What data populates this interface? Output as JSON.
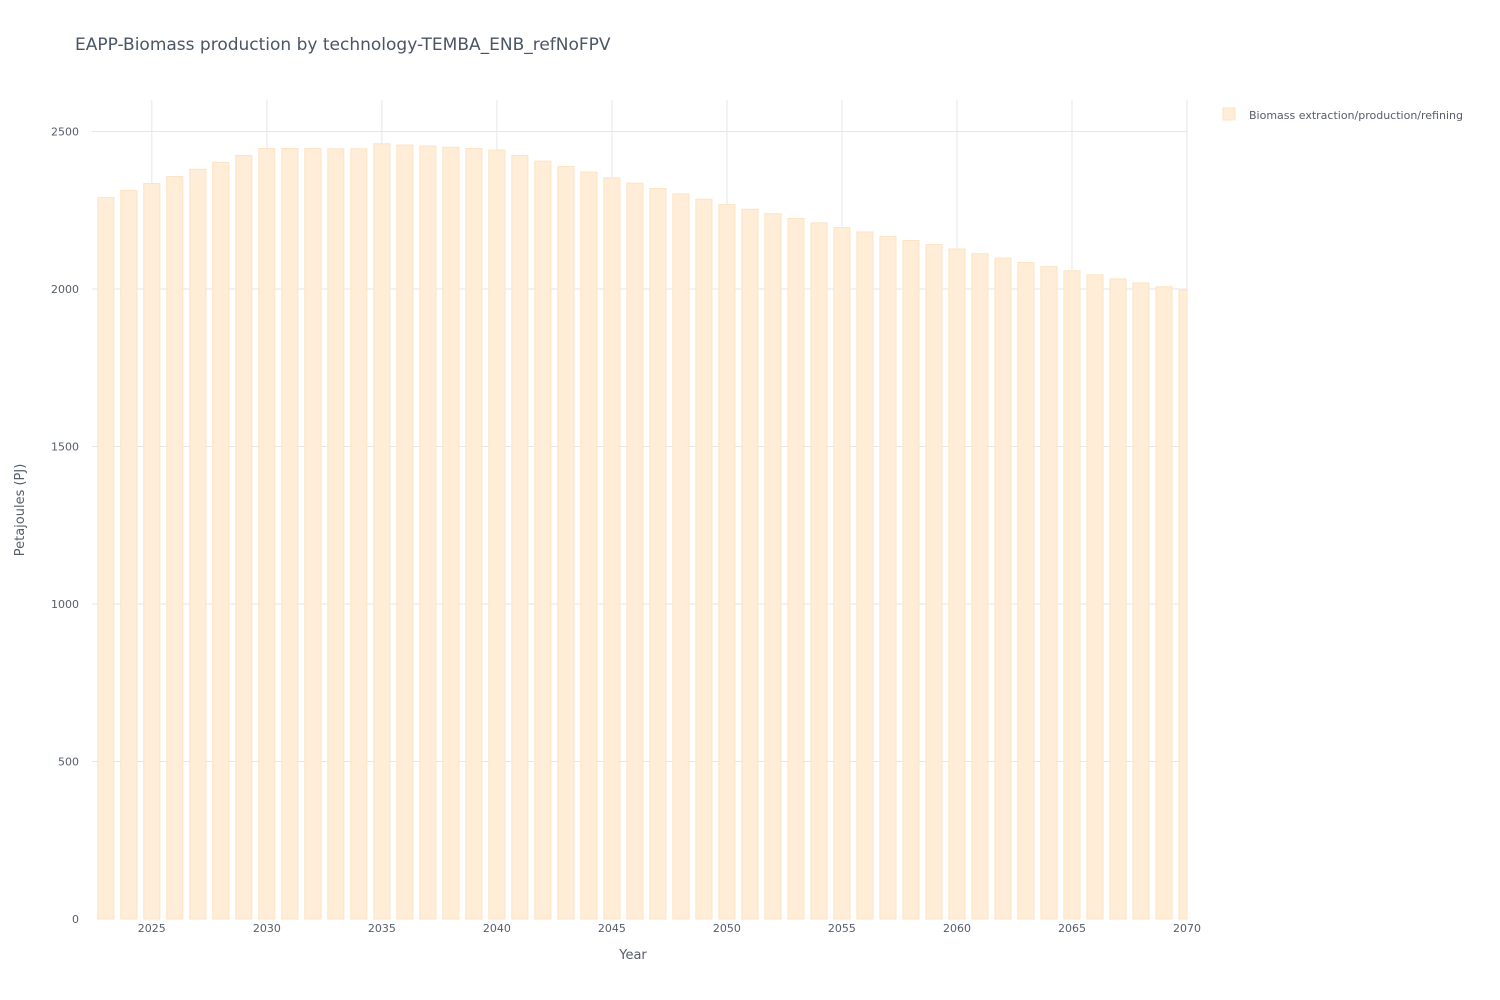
{
  "chart_data": {
    "type": "bar",
    "title": "EAPP-Biomass production by technology-TEMBA_ENB_refNoFPV",
    "xlabel": "Year",
    "ylabel": "Petajoules (PJ)",
    "ylim": [
      0,
      2600
    ],
    "xlim": [
      2022.4,
      2070
    ],
    "y_ticks": [
      0,
      500,
      1000,
      1500,
      2000,
      2500
    ],
    "x_ticks": [
      2025,
      2030,
      2035,
      2040,
      2045,
      2050,
      2055,
      2060,
      2065,
      2070
    ],
    "grid": true,
    "legend_position": "top-right",
    "colors": {
      "bar_fill": "#ffedd8",
      "bar_stroke": "#fde3c3",
      "grid": "#e6e6e6",
      "text": "#555e6b"
    },
    "series": [
      {
        "name": "Biomass extraction/production/refining",
        "x": [
          2023,
          2024,
          2025,
          2026,
          2027,
          2028,
          2029,
          2030,
          2031,
          2032,
          2033,
          2034,
          2035,
          2036,
          2037,
          2038,
          2039,
          2040,
          2041,
          2042,
          2043,
          2044,
          2045,
          2046,
          2047,
          2048,
          2049,
          2050,
          2051,
          2052,
          2053,
          2054,
          2055,
          2056,
          2057,
          2058,
          2059,
          2060,
          2061,
          2062,
          2063,
          2064,
          2065,
          2066,
          2067,
          2068,
          2069,
          2070
        ],
        "values": [
          2290,
          2313,
          2335,
          2357,
          2380,
          2402,
          2424,
          2446,
          2446,
          2446,
          2445,
          2445,
          2461,
          2457,
          2454,
          2450,
          2446,
          2441,
          2424,
          2406,
          2389,
          2371,
          2353,
          2336,
          2319,
          2302,
          2285,
          2268,
          2253,
          2239,
          2224,
          2210,
          2195,
          2181,
          2167,
          2154,
          2141,
          2127,
          2112,
          2098,
          2084,
          2071,
          2058,
          2045,
          2032,
          2019,
          2007,
          1996
        ]
      }
    ]
  }
}
